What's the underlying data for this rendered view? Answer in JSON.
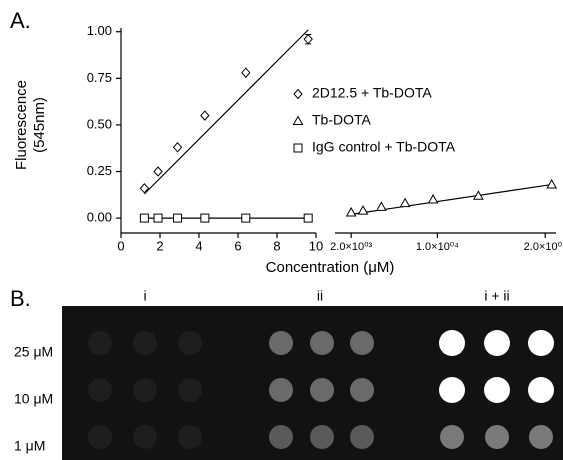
{
  "chart_data": {
    "type": "scatter",
    "panel_label": "A.",
    "y_label": [
      "Fluorescence",
      "(545nm)"
    ],
    "x_label": "Concentration (μM)",
    "ylim": [
      -0.08,
      1.02
    ],
    "yticks": [
      {
        "value": 0,
        "label": "0.00"
      },
      {
        "value": 0.25,
        "label": "0.25"
      },
      {
        "value": 0.5,
        "label": "0.50"
      },
      {
        "value": 0.75,
        "label": "0.75"
      },
      {
        "value": 1,
        "label": "1.00"
      }
    ],
    "x_segments": [
      {
        "xlim": [
          0,
          10
        ],
        "xticks": [
          0,
          2,
          4,
          6,
          8,
          10
        ]
      },
      {
        "xlim": [
          500,
          21000
        ],
        "xticks": [
          {
            "value": 2000,
            "label": "2.0×10⁰³"
          },
          {
            "value": 10000,
            "label": "1.0×10⁰⁴"
          },
          {
            "value": 20000,
            "label": "2.0×10⁰⁴"
          }
        ]
      }
    ],
    "legend": "upper right",
    "series": [
      {
        "name": "2D12.5 + Tb-DOTA",
        "marker": "diamond",
        "color": "#000000",
        "segment": 0,
        "x": [
          1.2,
          1.9,
          2.9,
          4.3,
          6.4,
          9.6
        ],
        "values": [
          0.16,
          0.25,
          0.38,
          0.55,
          0.78,
          0.96
        ],
        "errors": [
          null,
          null,
          null,
          null,
          null,
          0.025
        ],
        "fit_x": [
          1.2,
          9.6
        ],
        "fit_y": [
          0.13,
          1.01
        ]
      },
      {
        "name": "Tb-DOTA",
        "marker": "triangle",
        "color": "#000000",
        "segment": 1,
        "x": [
          2000,
          3100,
          4800,
          7000,
          9600,
          13800,
          20600
        ],
        "values": [
          0.03,
          0.04,
          0.06,
          0.08,
          0.1,
          0.12,
          0.18
        ],
        "fit_x": [
          2000,
          20600
        ],
        "fit_y": [
          0.02,
          0.18
        ]
      },
      {
        "name": "IgG control + Tb-DOTA",
        "marker": "square",
        "color": "#000000",
        "segment": 0,
        "x": [
          1.2,
          1.9,
          2.9,
          4.3,
          6.4,
          9.6
        ],
        "values": [
          0,
          0,
          0,
          0,
          0,
          0
        ],
        "fit_x": [
          1.2,
          9.6
        ],
        "fit_y": [
          0,
          0
        ]
      }
    ]
  },
  "panel_b": {
    "label": "B.",
    "columns": [
      "i",
      "ii",
      "i + ii"
    ],
    "rows": [
      "25 μM",
      "10 μM",
      "1 μM"
    ]
  }
}
